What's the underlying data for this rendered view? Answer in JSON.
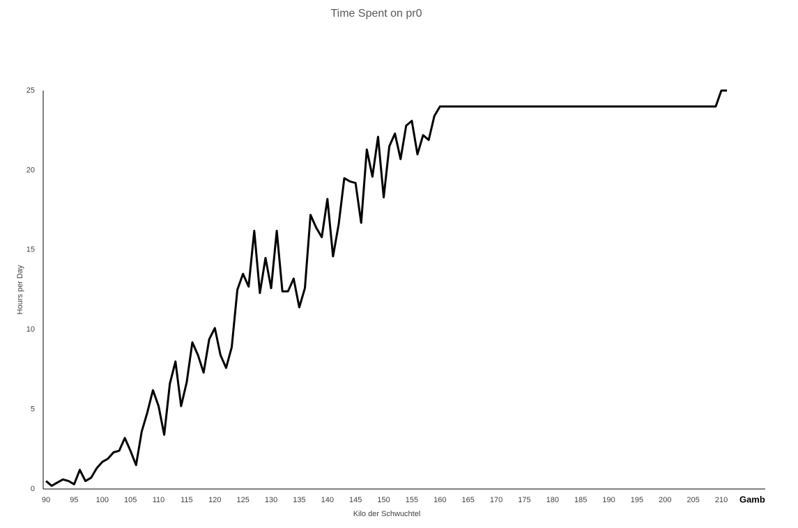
{
  "chart_data": {
    "type": "line",
    "title": "Time Spent on pr0",
    "x_label": "Kilo der Schwuchtel",
    "y_label": "Hours per Day",
    "x": [
      90,
      91,
      92,
      93,
      94,
      95,
      96,
      97,
      98,
      99,
      100,
      101,
      102,
      103,
      104,
      105,
      106,
      107,
      108,
      109,
      110,
      111,
      112,
      113,
      114,
      115,
      116,
      117,
      118,
      119,
      120,
      121,
      122,
      123,
      124,
      125,
      126,
      127,
      128,
      129,
      130,
      131,
      132,
      133,
      134,
      135,
      136,
      137,
      138,
      139,
      140,
      141,
      142,
      143,
      144,
      145,
      146,
      147,
      148,
      149,
      150,
      151,
      152,
      153,
      154,
      155,
      156,
      157,
      158,
      159,
      160,
      161,
      162,
      163,
      164,
      165,
      166,
      167,
      168,
      169,
      170,
      171,
      172,
      173,
      174,
      175,
      176,
      177,
      178,
      179,
      180,
      181,
      182,
      183,
      184,
      185,
      186,
      187,
      188,
      189,
      190,
      191,
      192,
      193,
      194,
      195,
      196,
      197,
      198,
      199,
      200,
      201,
      202,
      203,
      204,
      205,
      206,
      207,
      208,
      209,
      210,
      211
    ],
    "series": [
      {
        "color": "#000000",
        "values": [
          0.5,
          0.2,
          0.4,
          0.6,
          0.5,
          0.3,
          1.2,
          0.5,
          0.7,
          1.3,
          1.7,
          1.9,
          2.3,
          2.4,
          3.2,
          2.4,
          1.5,
          3.6,
          4.8,
          6.2,
          5.2,
          3.4,
          6.6,
          8.0,
          5.2,
          6.7,
          9.2,
          8.4,
          7.3,
          9.4,
          10.1,
          8.4,
          7.6,
          8.9,
          12.5,
          13.5,
          12.7,
          16.2,
          12.3,
          14.5,
          12.6,
          16.2,
          12.4,
          12.4,
          13.2,
          11.4,
          12.6,
          17.2,
          16.4,
          15.8,
          18.2,
          14.6,
          16.6,
          19.5,
          19.3,
          19.2,
          16.7,
          21.3,
          19.6,
          22.1,
          18.3,
          21.5,
          22.3,
          20.7,
          22.8,
          23.1,
          21.0,
          22.2,
          21.9,
          23.4,
          24,
          24,
          24,
          24,
          24,
          24,
          24,
          24,
          24,
          24,
          24,
          24,
          24,
          24,
          24,
          24,
          24,
          24,
          24,
          24,
          24,
          24,
          24,
          24,
          24,
          24,
          24,
          24,
          24,
          24,
          24,
          24,
          24,
          24,
          24,
          24,
          24,
          24,
          24,
          24,
          24,
          24,
          24,
          24,
          24,
          24,
          24,
          24,
          24,
          24,
          25,
          25
        ]
      }
    ],
    "xlim": [
      89.5,
      217.8
    ],
    "ylim": [
      0,
      25
    ],
    "xticks": [
      90,
      95,
      100,
      105,
      110,
      115,
      120,
      125,
      130,
      135,
      140,
      145,
      150,
      155,
      160,
      165,
      170,
      175,
      180,
      185,
      190,
      195,
      200,
      205,
      210,
      {
        "value": 215,
        "label": "Gamb"
      }
    ],
    "yticks": [
      0,
      5,
      10,
      15,
      20,
      25
    ],
    "grid": false
  }
}
